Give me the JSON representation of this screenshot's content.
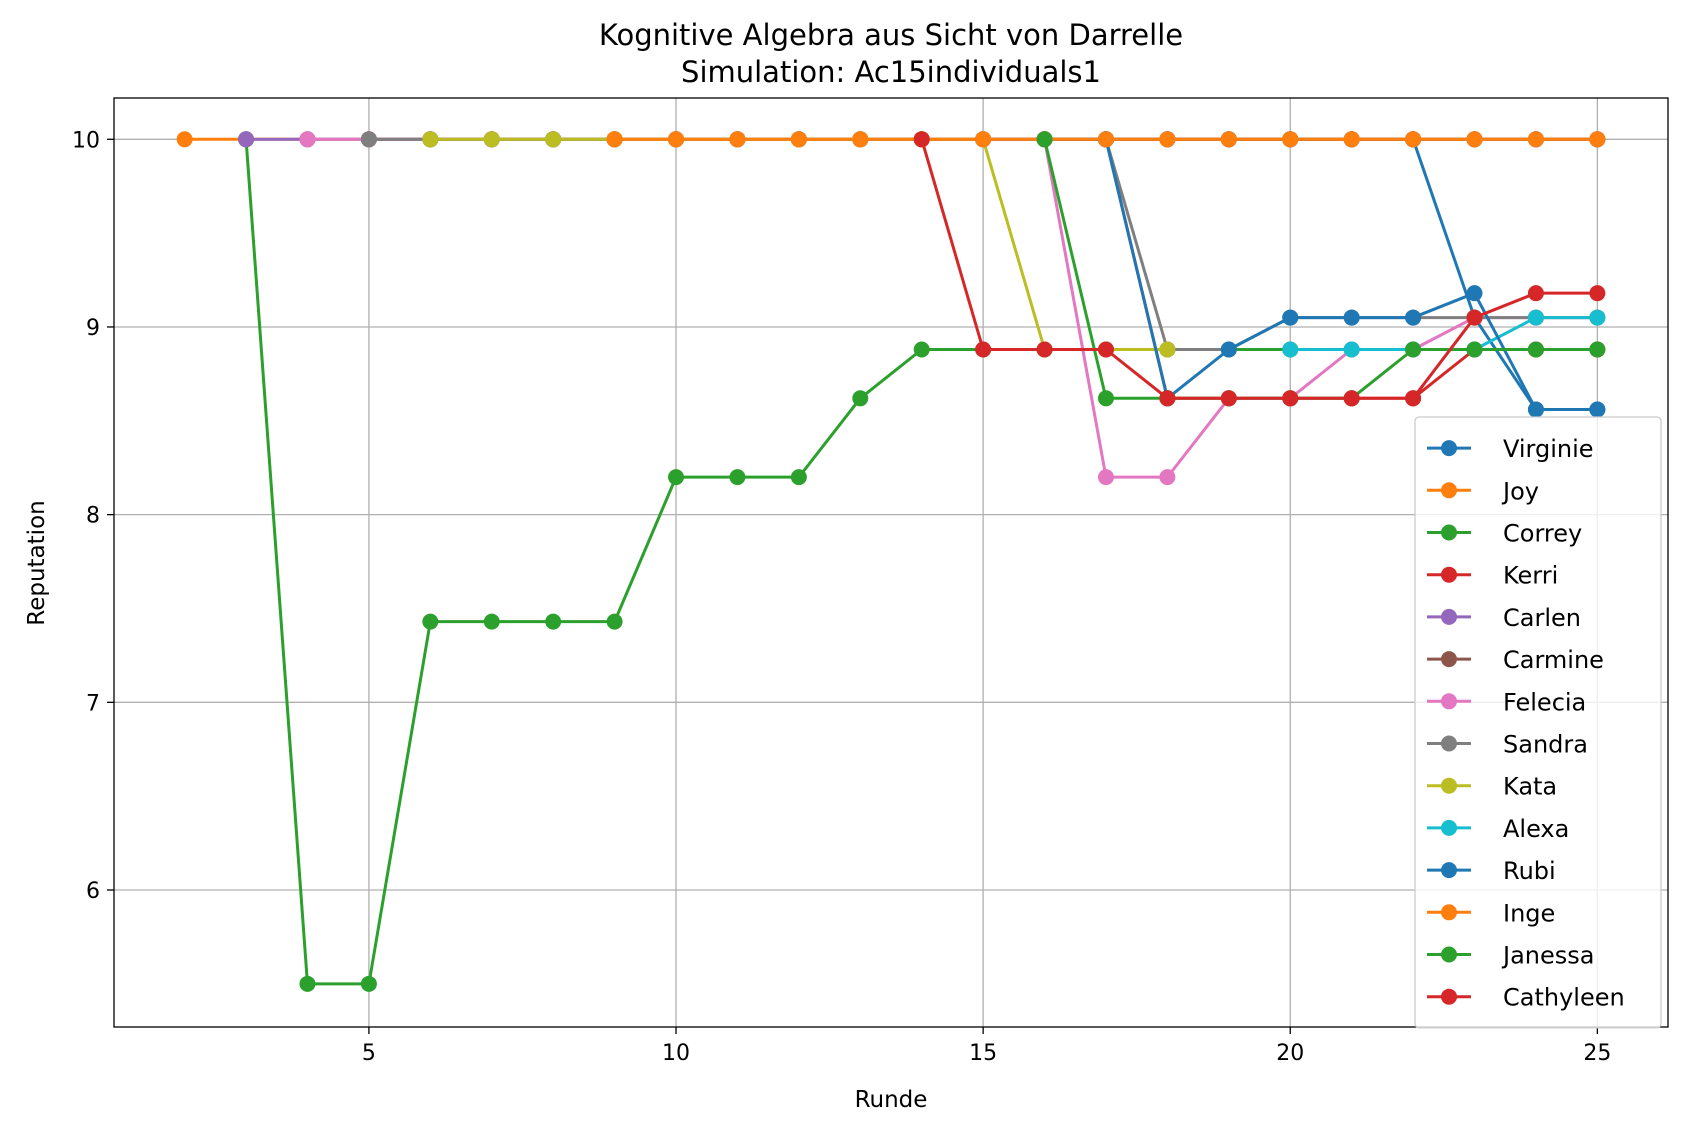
{
  "chart_data": {
    "type": "line",
    "title": "Kognitive Algebra aus Sicht von Darrelle",
    "subtitle": "Simulation: Ac15individuals1",
    "xlabel": "Runde",
    "ylabel": "Reputation",
    "xlim": [
      0.85,
      26.15
    ],
    "ylim": [
      5.27,
      10.22
    ],
    "xticks": [
      5,
      10,
      15,
      20,
      25
    ],
    "yticks": [
      6,
      7,
      8,
      9,
      10
    ],
    "grid": true,
    "legend_position": "lower-right",
    "series": [
      {
        "name": "Virginie",
        "color": "#1f77b4",
        "x": [
          8,
          9,
          10,
          11,
          12,
          13,
          14,
          15,
          16,
          17,
          18,
          19,
          20,
          21,
          22,
          23,
          24,
          25
        ],
        "y": [
          10,
          10,
          10,
          10,
          10,
          10,
          10,
          10,
          10,
          10,
          10,
          10,
          10,
          10,
          10,
          9.05,
          8.56,
          8.56
        ]
      },
      {
        "name": "Joy",
        "color": "#ff7f0e",
        "x": [
          2,
          3,
          4,
          5,
          6,
          7,
          8,
          9,
          10,
          11,
          12,
          13,
          14,
          15,
          16,
          17,
          18,
          19,
          20,
          21,
          22,
          23,
          24,
          25
        ],
        "y": [
          10,
          10,
          10,
          10,
          10,
          10,
          10,
          10,
          10,
          10,
          10,
          10,
          10,
          10,
          10,
          10,
          10,
          10,
          10,
          10,
          10,
          10,
          10,
          10
        ]
      },
      {
        "name": "Correy",
        "color": "#2ca02c",
        "x": [
          3,
          4,
          5,
          6,
          7,
          8,
          9,
          10,
          11,
          12,
          13,
          14,
          15,
          16,
          17,
          18,
          19,
          20,
          21,
          22,
          23,
          24,
          25
        ],
        "y": [
          10,
          5.5,
          5.5,
          7.43,
          7.43,
          7.43,
          7.43,
          8.2,
          8.2,
          8.2,
          8.62,
          8.88,
          8.88,
          8.88,
          8.88,
          8.88,
          8.88,
          8.88,
          8.88,
          8.88,
          8.88,
          8.88,
          8.88
        ]
      },
      {
        "name": "Kerri",
        "color": "#d62728",
        "x": [
          10,
          11,
          12,
          13,
          14,
          15,
          16,
          17,
          18,
          19,
          20,
          21,
          22,
          23,
          24,
          25
        ],
        "y": [
          10,
          10,
          10,
          10,
          10,
          10,
          10,
          10,
          8.62,
          8.62,
          8.62,
          8.62,
          8.62,
          8.88,
          8.88,
          8.88
        ]
      },
      {
        "name": "Carlen",
        "color": "#9467bd",
        "x": [
          3,
          4,
          5,
          6,
          7,
          8,
          9,
          10,
          11,
          12,
          13,
          14,
          15,
          16,
          17,
          18,
          19,
          20,
          21,
          22,
          23,
          24,
          25
        ],
        "y": [
          10,
          10,
          10,
          10,
          10,
          10,
          10,
          10,
          10,
          10,
          10,
          10,
          10,
          10,
          10,
          10,
          10,
          10,
          10,
          10,
          10,
          10,
          10
        ]
      },
      {
        "name": "Carmine",
        "color": "#8c564b",
        "x": [
          5,
          6,
          7,
          8,
          9,
          10,
          11,
          12,
          13,
          14,
          15,
          16,
          17,
          18,
          19,
          20,
          21,
          22,
          23,
          24,
          25
        ],
        "y": [
          10,
          10,
          10,
          10,
          10,
          10,
          10,
          10,
          10,
          10,
          10,
          10,
          10,
          10,
          10,
          10,
          10,
          10,
          10,
          10,
          10
        ]
      },
      {
        "name": "Felecia",
        "color": "#e377c2",
        "x": [
          4,
          5,
          6,
          7,
          8,
          9,
          10,
          11,
          12,
          13,
          14,
          15,
          16,
          17,
          18,
          19,
          20,
          21,
          22,
          23,
          24,
          25
        ],
        "y": [
          10,
          10,
          10,
          10,
          10,
          10,
          10,
          10,
          10,
          10,
          10,
          10,
          10,
          8.2,
          8.2,
          8.62,
          8.62,
          8.88,
          8.88,
          9.05,
          9.05,
          9.05
        ]
      },
      {
        "name": "Sandra",
        "color": "#7f7f7f",
        "x": [
          5,
          6,
          7,
          8,
          9,
          10,
          11,
          12,
          13,
          14,
          15,
          16,
          17,
          18,
          19,
          20,
          21,
          22,
          23,
          24,
          25
        ],
        "y": [
          10,
          10,
          10,
          10,
          10,
          10,
          10,
          10,
          10,
          10,
          10,
          10,
          10,
          8.88,
          8.88,
          9.05,
          9.05,
          9.05,
          9.05,
          9.05,
          9.05
        ]
      },
      {
        "name": "Kata",
        "color": "#bcbd22",
        "x": [
          6,
          7,
          8,
          9,
          10,
          11,
          12,
          13,
          14,
          15,
          16,
          17,
          18
        ],
        "y": [
          10,
          10,
          10,
          10,
          10,
          10,
          10,
          10,
          10,
          10,
          8.88,
          8.88,
          8.88
        ]
      },
      {
        "name": "Alexa",
        "color": "#17becf",
        "x": [
          20,
          21,
          22,
          23,
          24,
          25
        ],
        "y": [
          8.88,
          8.88,
          8.88,
          8.88,
          9.05,
          9.05
        ]
      },
      {
        "name": "Rubi",
        "color": "#1f77b4",
        "x": [
          17,
          18,
          19,
          20,
          21,
          22,
          23,
          24,
          25
        ],
        "y": [
          10,
          8.62,
          8.88,
          9.05,
          9.05,
          9.05,
          9.18,
          8.56,
          8.56
        ]
      },
      {
        "name": "Inge",
        "color": "#ff7f0e",
        "x": [
          9,
          10,
          11,
          12,
          13,
          14,
          15,
          16,
          17,
          18,
          19,
          20,
          21,
          22,
          23,
          24,
          25
        ],
        "y": [
          10,
          10,
          10,
          10,
          10,
          10,
          10,
          10,
          10,
          10,
          10,
          10,
          10,
          10,
          10,
          10,
          10
        ]
      },
      {
        "name": "Janessa",
        "color": "#2ca02c",
        "x": [
          16,
          17,
          18,
          19,
          20,
          21,
          22,
          23,
          24,
          25
        ],
        "y": [
          10,
          8.62,
          8.62,
          8.62,
          8.62,
          8.62,
          8.88,
          8.88,
          8.88,
          8.88
        ]
      },
      {
        "name": "Cathyleen",
        "color": "#d62728",
        "x": [
          14,
          15,
          16,
          17,
          18,
          19,
          20,
          21,
          22,
          23,
          24,
          25
        ],
        "y": [
          10,
          8.88,
          8.88,
          8.88,
          8.62,
          8.62,
          8.62,
          8.62,
          8.62,
          9.05,
          9.18,
          9.18
        ]
      }
    ]
  }
}
